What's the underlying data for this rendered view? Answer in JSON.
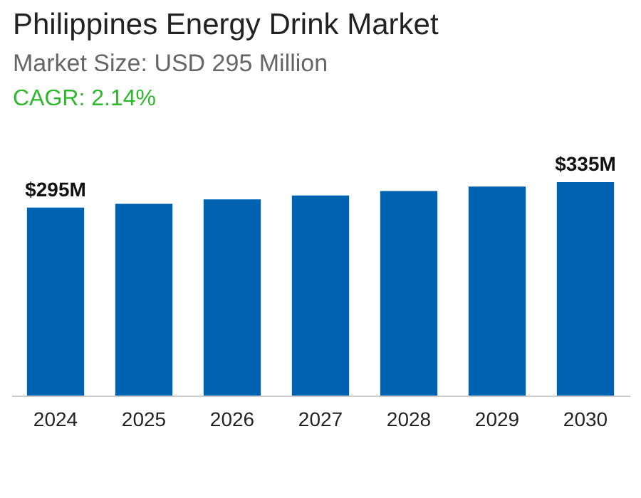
{
  "chart_data": {
    "type": "bar",
    "title": "Philippines Energy Drink Market",
    "subtitle": "Market Size: USD 295 Million",
    "annotations": [
      "CAGR: 2.14%"
    ],
    "categories": [
      "2024",
      "2025",
      "2026",
      "2027",
      "2028",
      "2029",
      "2030"
    ],
    "values": [
      295,
      301,
      308,
      314,
      321,
      328,
      335
    ],
    "color": "#0063b1",
    "value_labels": [
      "$295M",
      null,
      null,
      null,
      null,
      null,
      "$335M"
    ],
    "grid": false
  }
}
